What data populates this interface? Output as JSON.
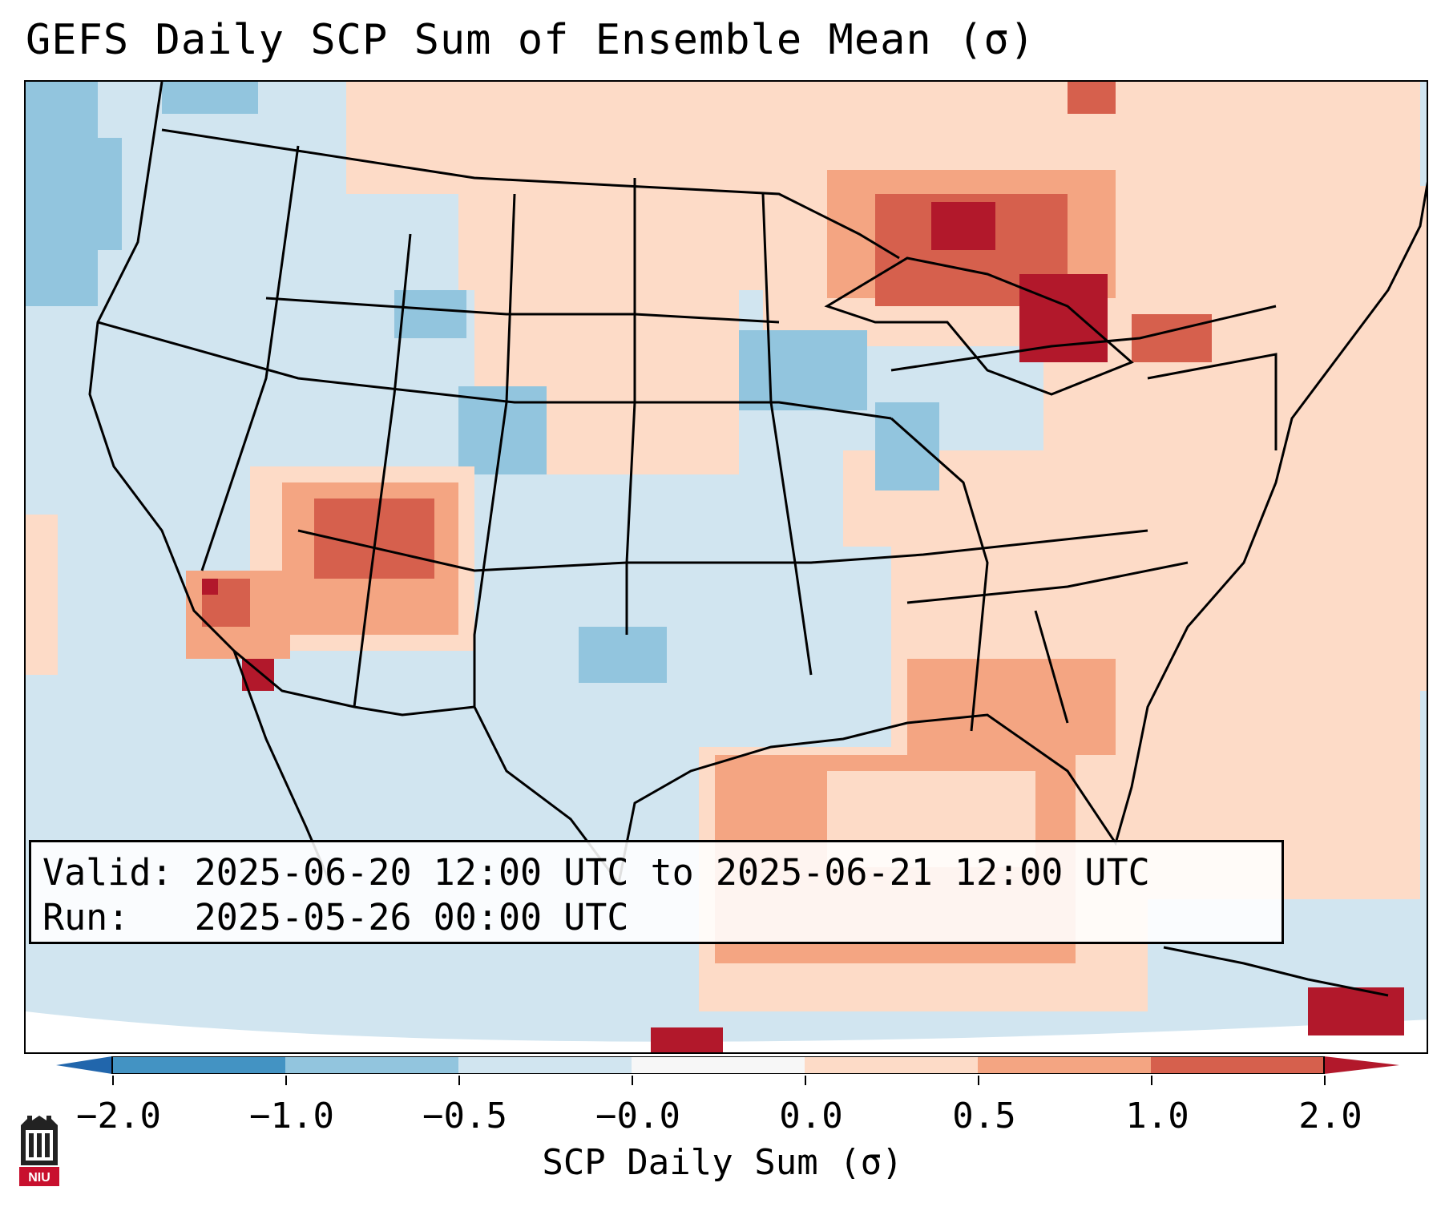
{
  "title": "GEFS Daily SCP Sum of Ensemble Mean (σ)",
  "info": {
    "valid_line": "Valid: 2025-06-20 12:00 UTC to 2025-06-21 12:00 UTC",
    "run_line": "Run:   2025-05-26 00:00 UTC"
  },
  "colorbar": {
    "label": "SCP Daily Sum (σ)",
    "ticks": [
      "−2.0",
      "−1.0",
      "−0.5",
      "−0.0",
      "0.0",
      "0.5",
      "1.0",
      "2.0"
    ],
    "colors": {
      "below_min": "#2166ac",
      "neg_2_to_1": "#4393c3",
      "neg_1_to_05": "#92c5de",
      "neg_05_to_0": "#d1e5f0",
      "zero": "#f7f7f7",
      "pos_0_to_05": "#fddbc7",
      "pos_05_to_1": "#f4a582",
      "pos_1_to_2": "#d6604d",
      "above_max": "#b2182b"
    }
  },
  "map": {
    "background_color": "#d1e5f0",
    "projection_edge_color": "#ffffff",
    "border_color": "#000000"
  },
  "logo": {
    "text": "NIU",
    "color": "#c8102e"
  }
}
